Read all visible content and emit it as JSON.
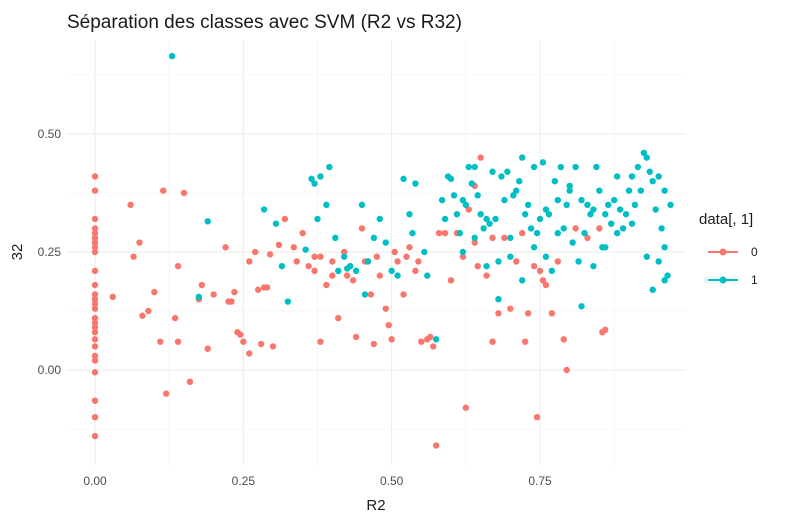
{
  "chart_data": {
    "type": "scatter",
    "title": "Séparation des classes avec SVM (R2 vs R32)",
    "xlabel": "R2",
    "ylabel": "32",
    "xlim": [
      -0.09,
      1.0
    ],
    "ylim": [
      -0.2,
      0.69
    ],
    "x_ticks": [
      0.0,
      0.25,
      0.5,
      0.75
    ],
    "x_tick_labels": [
      "0.00",
      "0.25",
      "0.50",
      "0.75"
    ],
    "y_ticks": [
      0.0,
      0.25,
      0.5
    ],
    "y_tick_labels": [
      "0.00",
      "0.25",
      "0.50"
    ],
    "grid": true,
    "legend": {
      "title": "data[, 1]",
      "position": "right"
    },
    "series": [
      {
        "name": "0",
        "color": "#F8766D",
        "points": [
          [
            0.0,
            0.41
          ],
          [
            0.0,
            0.38
          ],
          [
            0.0,
            0.32
          ],
          [
            0.0,
            0.3
          ],
          [
            0.0,
            0.29
          ],
          [
            0.0,
            0.28
          ],
          [
            0.0,
            0.27
          ],
          [
            0.0,
            0.26
          ],
          [
            0.0,
            0.25
          ],
          [
            0.0,
            0.21
          ],
          [
            0.0,
            0.18
          ],
          [
            0.0,
            0.16
          ],
          [
            0.0,
            0.15
          ],
          [
            0.0,
            0.14
          ],
          [
            0.0,
            0.13
          ],
          [
            0.0,
            0.11
          ],
          [
            0.0,
            0.1
          ],
          [
            0.0,
            0.09
          ],
          [
            0.0,
            0.08
          ],
          [
            0.0,
            0.065
          ],
          [
            0.0,
            0.05
          ],
          [
            0.0,
            0.03
          ],
          [
            0.0,
            0.02
          ],
          [
            0.0,
            -0.005
          ],
          [
            0.0,
            -0.065
          ],
          [
            0.0,
            -0.1
          ],
          [
            0.0,
            -0.14
          ],
          [
            0.03,
            0.155
          ],
          [
            0.06,
            0.35
          ],
          [
            0.065,
            0.24
          ],
          [
            0.075,
            0.27
          ],
          [
            0.08,
            0.115
          ],
          [
            0.09,
            0.125
          ],
          [
            0.1,
            0.165
          ],
          [
            0.11,
            0.06
          ],
          [
            0.115,
            0.38
          ],
          [
            0.12,
            -0.05
          ],
          [
            0.135,
            0.11
          ],
          [
            0.14,
            0.22
          ],
          [
            0.14,
            0.06
          ],
          [
            0.15,
            0.375
          ],
          [
            0.16,
            -0.025
          ],
          [
            0.175,
            0.15
          ],
          [
            0.18,
            0.18
          ],
          [
            0.19,
            0.045
          ],
          [
            0.2,
            0.16
          ],
          [
            0.22,
            0.26
          ],
          [
            0.225,
            0.145
          ],
          [
            0.23,
            0.145
          ],
          [
            0.235,
            0.165
          ],
          [
            0.24,
            0.08
          ],
          [
            0.245,
            0.075
          ],
          [
            0.25,
            0.06
          ],
          [
            0.26,
            0.23
          ],
          [
            0.26,
            0.035
          ],
          [
            0.27,
            0.25
          ],
          [
            0.275,
            0.17
          ],
          [
            0.28,
            0.055
          ],
          [
            0.285,
            0.175
          ],
          [
            0.29,
            0.175
          ],
          [
            0.295,
            0.245
          ],
          [
            0.3,
            0.05
          ],
          [
            0.31,
            0.265
          ],
          [
            0.32,
            0.32
          ],
          [
            0.335,
            0.26
          ],
          [
            0.34,
            0.23
          ],
          [
            0.35,
            0.29
          ],
          [
            0.36,
            0.22
          ],
          [
            0.37,
            0.24
          ],
          [
            0.37,
            0.21
          ],
          [
            0.38,
            0.24
          ],
          [
            0.38,
            0.06
          ],
          [
            0.39,
            0.18
          ],
          [
            0.4,
            0.23
          ],
          [
            0.4,
            0.2
          ],
          [
            0.41,
            0.11
          ],
          [
            0.42,
            0.25
          ],
          [
            0.425,
            0.2
          ],
          [
            0.43,
            0.22
          ],
          [
            0.435,
            0.19
          ],
          [
            0.44,
            0.07
          ],
          [
            0.45,
            0.3
          ],
          [
            0.455,
            0.23
          ],
          [
            0.46,
            0.23
          ],
          [
            0.465,
            0.16
          ],
          [
            0.47,
            0.055
          ],
          [
            0.475,
            0.24
          ],
          [
            0.48,
            0.2
          ],
          [
            0.49,
            0.13
          ],
          [
            0.495,
            0.095
          ],
          [
            0.5,
            0.065
          ],
          [
            0.505,
            0.25
          ],
          [
            0.51,
            0.23
          ],
          [
            0.52,
            0.16
          ],
          [
            0.525,
            0.24
          ],
          [
            0.53,
            0.26
          ],
          [
            0.54,
            0.21
          ],
          [
            0.545,
            0.23
          ],
          [
            0.55,
            0.06
          ],
          [
            0.56,
            0.065
          ],
          [
            0.565,
            0.07
          ],
          [
            0.57,
            0.05
          ],
          [
            0.58,
            0.29
          ],
          [
            0.59,
            0.29
          ],
          [
            0.575,
            -0.16
          ],
          [
            0.6,
            0.19
          ],
          [
            0.61,
            0.29
          ],
          [
            0.62,
            0.24
          ],
          [
            0.625,
            -0.08
          ],
          [
            0.63,
            0.34
          ],
          [
            0.64,
            0.39
          ],
          [
            0.64,
            0.27
          ],
          [
            0.645,
            0.22
          ],
          [
            0.65,
            0.45
          ],
          [
            0.66,
            0.2
          ],
          [
            0.67,
            0.06
          ],
          [
            0.67,
            0.28
          ],
          [
            0.68,
            0.12
          ],
          [
            0.69,
            0.28
          ],
          [
            0.7,
            0.13
          ],
          [
            0.71,
            0.23
          ],
          [
            0.72,
            0.29
          ],
          [
            0.725,
            0.06
          ],
          [
            0.73,
            0.12
          ],
          [
            0.74,
            0.22
          ],
          [
            0.745,
            -0.1
          ],
          [
            0.75,
            0.21
          ],
          [
            0.755,
            0.19
          ],
          [
            0.76,
            0.18
          ],
          [
            0.77,
            0.12
          ],
          [
            0.78,
            0.23
          ],
          [
            0.79,
            0.065
          ],
          [
            0.795,
            0.0
          ],
          [
            0.81,
            0.3
          ],
          [
            0.83,
            0.28
          ],
          [
            0.85,
            0.3
          ],
          [
            0.855,
            0.08
          ],
          [
            0.86,
            0.085
          ]
        ]
      },
      {
        "name": "1",
        "color": "#00BFC4",
        "points": [
          [
            0.13,
            0.665
          ],
          [
            0.175,
            0.155
          ],
          [
            0.19,
            0.315
          ],
          [
            0.285,
            0.34
          ],
          [
            0.305,
            0.31
          ],
          [
            0.315,
            0.22
          ],
          [
            0.325,
            0.145
          ],
          [
            0.355,
            0.255
          ],
          [
            0.365,
            0.405
          ],
          [
            0.37,
            0.395
          ],
          [
            0.375,
            0.32
          ],
          [
            0.38,
            0.41
          ],
          [
            0.39,
            0.35
          ],
          [
            0.395,
            0.43
          ],
          [
            0.405,
            0.28
          ],
          [
            0.41,
            0.21
          ],
          [
            0.42,
            0.24
          ],
          [
            0.425,
            0.215
          ],
          [
            0.43,
            0.22
          ],
          [
            0.44,
            0.21
          ],
          [
            0.45,
            0.35
          ],
          [
            0.455,
            0.16
          ],
          [
            0.46,
            0.23
          ],
          [
            0.47,
            0.28
          ],
          [
            0.48,
            0.32
          ],
          [
            0.49,
            0.27
          ],
          [
            0.5,
            0.21
          ],
          [
            0.51,
            0.2
          ],
          [
            0.52,
            0.405
          ],
          [
            0.53,
            0.33
          ],
          [
            0.535,
            0.29
          ],
          [
            0.54,
            0.395
          ],
          [
            0.555,
            0.25
          ],
          [
            0.56,
            0.2
          ],
          [
            0.575,
            0.065
          ],
          [
            0.585,
            0.36
          ],
          [
            0.59,
            0.32
          ],
          [
            0.595,
            0.41
          ],
          [
            0.6,
            0.405
          ],
          [
            0.605,
            0.37
          ],
          [
            0.61,
            0.33
          ],
          [
            0.615,
            0.29
          ],
          [
            0.62,
            0.36
          ],
          [
            0.625,
            0.35
          ],
          [
            0.63,
            0.43
          ],
          [
            0.635,
            0.395
          ],
          [
            0.64,
            0.43
          ],
          [
            0.645,
            0.37
          ],
          [
            0.65,
            0.33
          ],
          [
            0.655,
            0.3
          ],
          [
            0.66,
            0.32
          ],
          [
            0.665,
            0.31
          ],
          [
            0.67,
            0.42
          ],
          [
            0.675,
            0.32
          ],
          [
            0.68,
            0.23
          ],
          [
            0.685,
            0.41
          ],
          [
            0.69,
            0.36
          ],
          [
            0.695,
            0.42
          ],
          [
            0.7,
            0.28
          ],
          [
            0.705,
            0.37
          ],
          [
            0.71,
            0.38
          ],
          [
            0.715,
            0.4
          ],
          [
            0.72,
            0.45
          ],
          [
            0.725,
            0.33
          ],
          [
            0.73,
            0.35
          ],
          [
            0.735,
            0.3
          ],
          [
            0.74,
            0.43
          ],
          [
            0.745,
            0.29
          ],
          [
            0.75,
            0.32
          ],
          [
            0.755,
            0.44
          ],
          [
            0.76,
            0.24
          ],
          [
            0.765,
            0.33
          ],
          [
            0.77,
            0.21
          ],
          [
            0.775,
            0.4
          ],
          [
            0.78,
            0.36
          ],
          [
            0.785,
            0.43
          ],
          [
            0.79,
            0.3
          ],
          [
            0.795,
            0.35
          ],
          [
            0.8,
            0.38
          ],
          [
            0.805,
            0.27
          ],
          [
            0.81,
            0.43
          ],
          [
            0.815,
            0.23
          ],
          [
            0.82,
            0.36
          ],
          [
            0.825,
            0.29
          ],
          [
            0.83,
            0.35
          ],
          [
            0.835,
            0.33
          ],
          [
            0.84,
            0.34
          ],
          [
            0.845,
            0.43
          ],
          [
            0.85,
            0.38
          ],
          [
            0.855,
            0.26
          ],
          [
            0.86,
            0.33
          ],
          [
            0.865,
            0.35
          ],
          [
            0.87,
            0.31
          ],
          [
            0.875,
            0.36
          ],
          [
            0.88,
            0.41
          ],
          [
            0.885,
            0.34
          ],
          [
            0.89,
            0.3
          ],
          [
            0.895,
            0.33
          ],
          [
            0.9,
            0.38
          ],
          [
            0.905,
            0.41
          ],
          [
            0.91,
            0.35
          ],
          [
            0.915,
            0.43
          ],
          [
            0.92,
            0.38
          ],
          [
            0.925,
            0.46
          ],
          [
            0.93,
            0.45
          ],
          [
            0.935,
            0.42
          ],
          [
            0.94,
            0.4
          ],
          [
            0.945,
            0.34
          ],
          [
            0.95,
            0.41
          ],
          [
            0.955,
            0.3
          ],
          [
            0.96,
            0.38
          ],
          [
            0.965,
            0.2
          ],
          [
            0.97,
            0.35
          ],
          [
            0.93,
            0.24
          ],
          [
            0.94,
            0.17
          ],
          [
            0.95,
            0.23
          ],
          [
            0.96,
            0.26
          ],
          [
            0.96,
            0.19
          ],
          [
            0.905,
            0.31
          ],
          [
            0.88,
            0.29
          ],
          [
            0.86,
            0.26
          ],
          [
            0.84,
            0.22
          ],
          [
            0.82,
            0.135
          ],
          [
            0.8,
            0.39
          ],
          [
            0.78,
            0.29
          ],
          [
            0.76,
            0.34
          ],
          [
            0.74,
            0.26
          ],
          [
            0.72,
            0.19
          ],
          [
            0.7,
            0.24
          ],
          [
            0.68,
            0.15
          ],
          [
            0.66,
            0.22
          ],
          [
            0.64,
            0.28
          ],
          [
            0.62,
            0.25
          ]
        ]
      }
    ]
  }
}
